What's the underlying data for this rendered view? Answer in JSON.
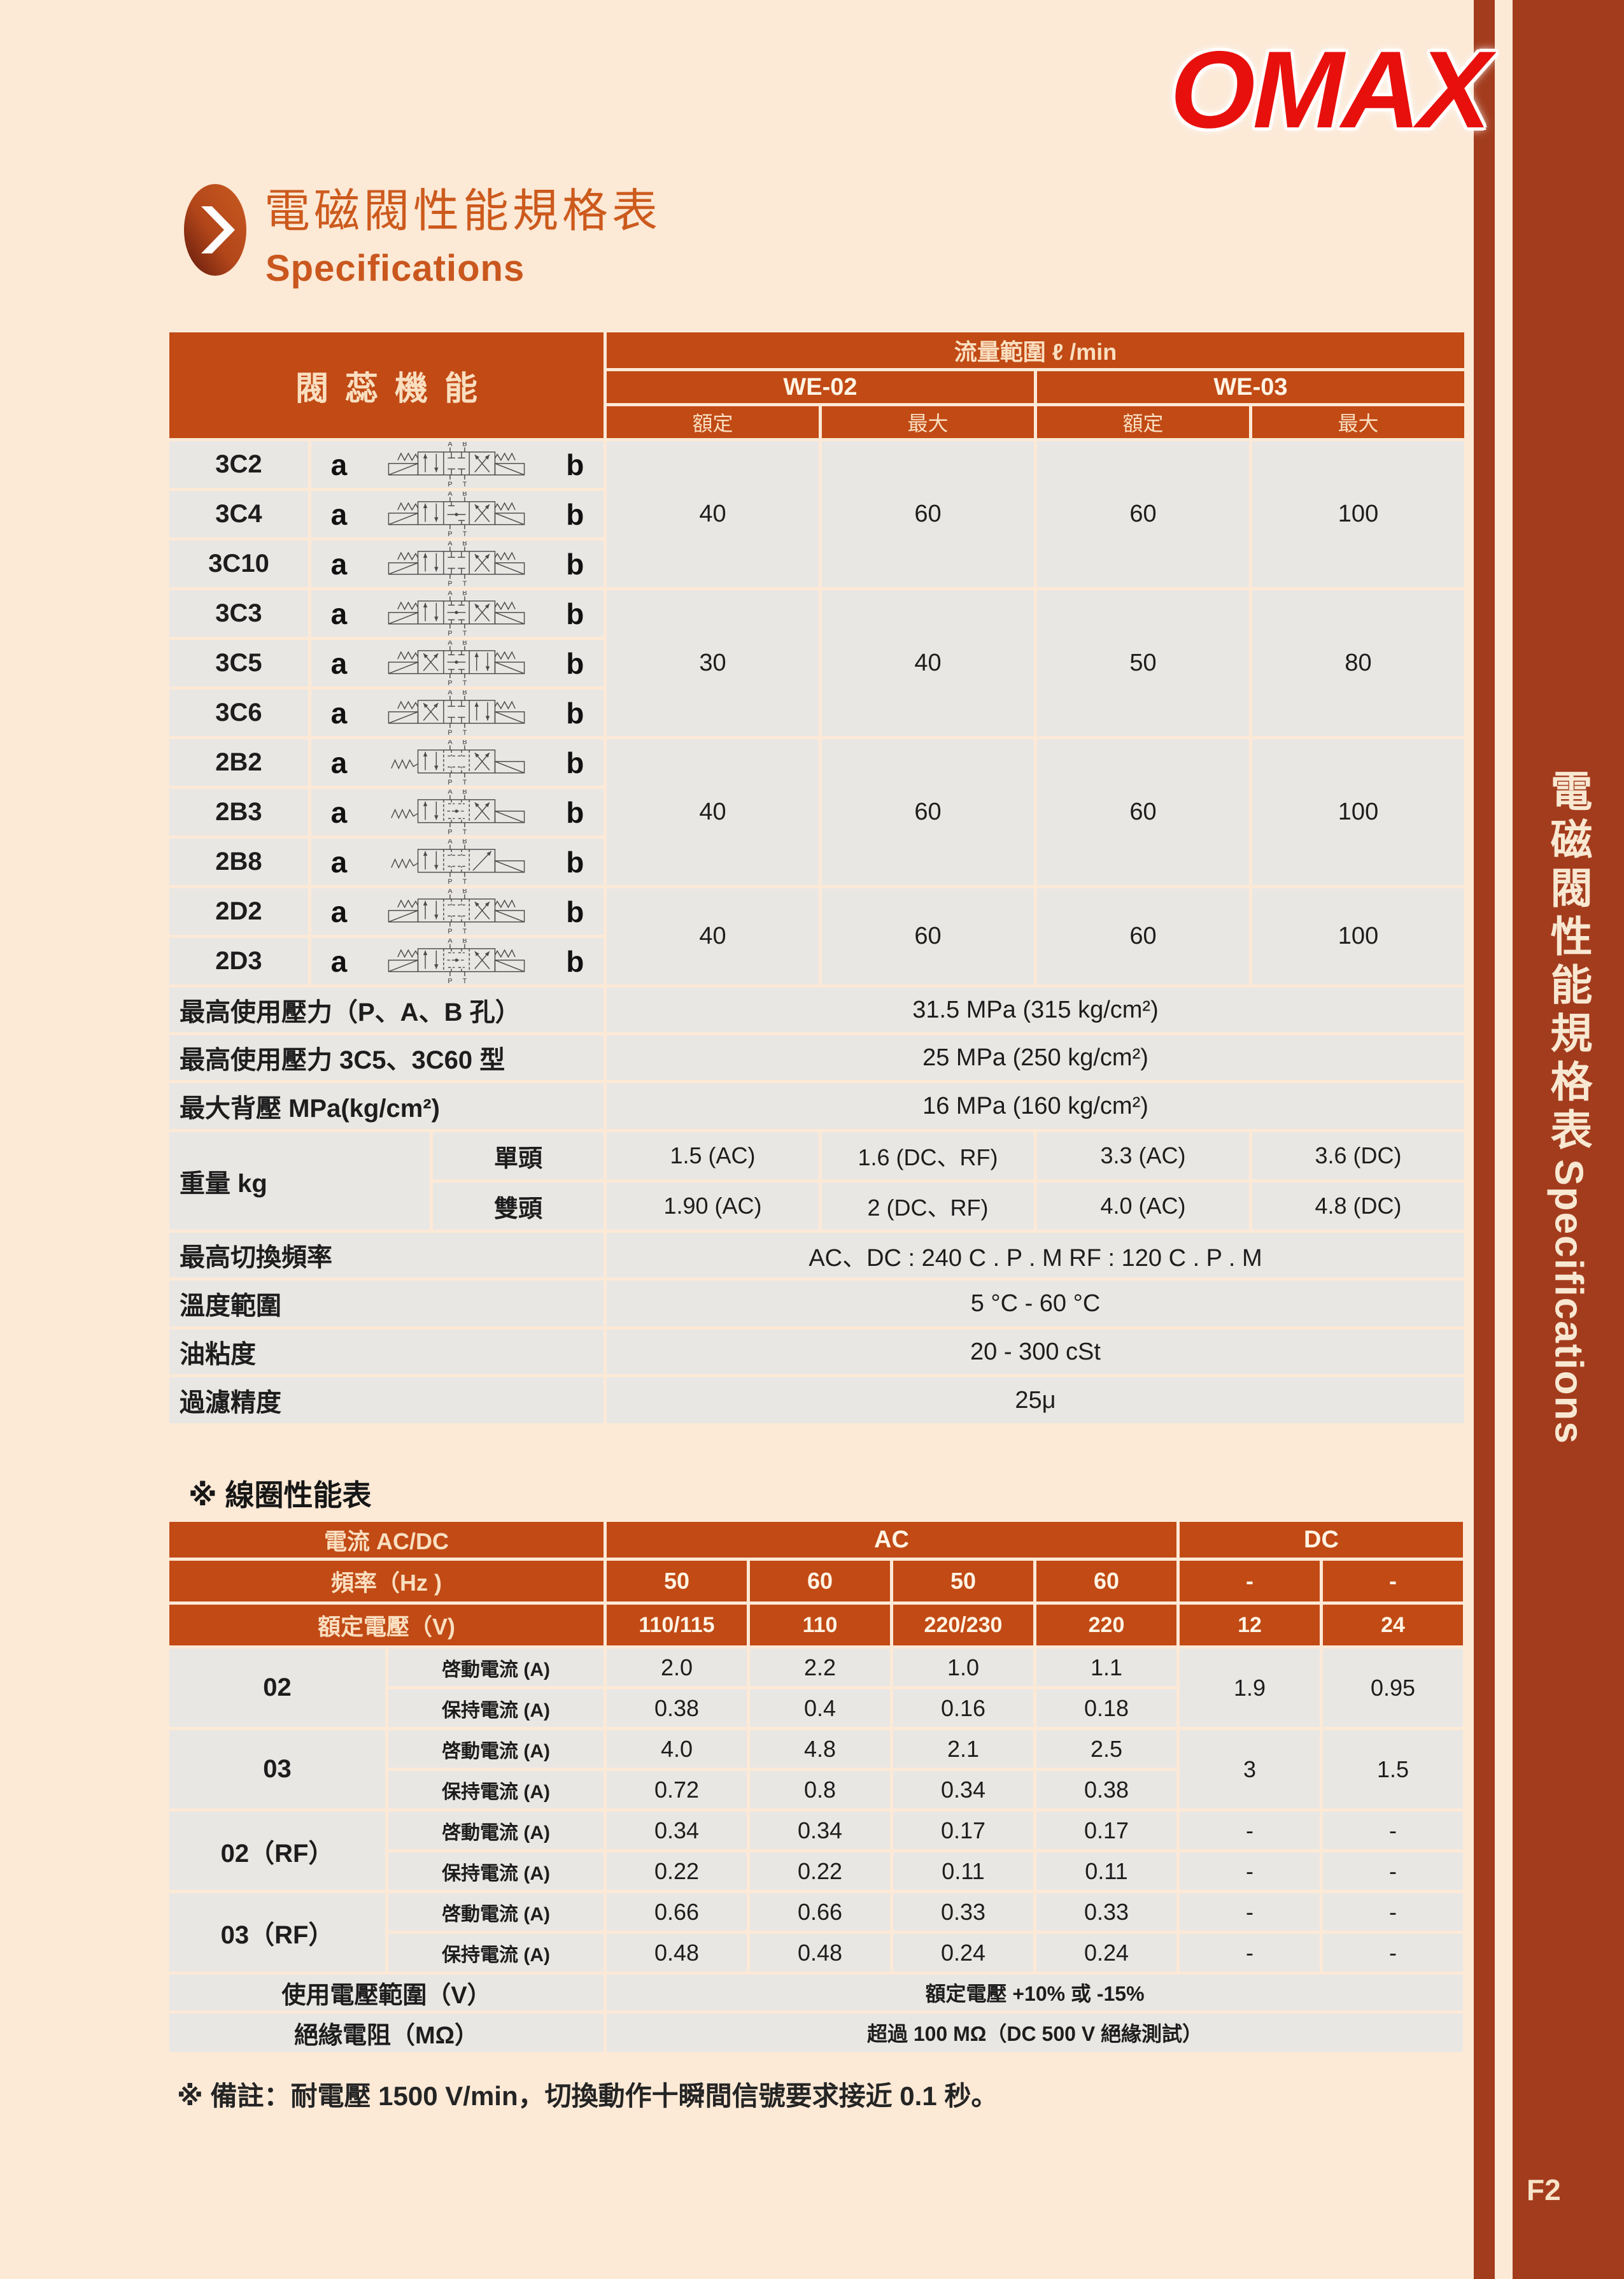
{
  "page": {
    "background": "#fce9d6",
    "accent_orange": "#c14a15",
    "sidebar_rust": "#a33c1d",
    "logo_red": "#e8100c",
    "page_number": "F2"
  },
  "logo": {
    "text": "OMAX"
  },
  "header": {
    "title": "電磁閥性能規格表",
    "subtitle": "Specifications"
  },
  "sidebar": {
    "vertical_title": "電磁閥性能規格表",
    "vertical_subtitle": "Specifications"
  },
  "main_table": {
    "corner_header": "閥蕊機能",
    "flow_header": "流量範圍 ℓ /min",
    "col_groups": [
      "WE-02",
      "WE-03"
    ],
    "sub_cols": [
      "額定",
      "最大",
      "額定",
      "最大"
    ],
    "port_labels": {
      "a": "a",
      "b": "b"
    },
    "valve_groups": [
      {
        "models": [
          {
            "code": "3C2",
            "symbol": "3pos-closed-center"
          },
          {
            "code": "3C4",
            "symbol": "3pos-line-center"
          },
          {
            "code": "3C10",
            "symbol": "3pos-closed-center-b"
          }
        ],
        "flows": [
          "40",
          "60",
          "60",
          "100"
        ]
      },
      {
        "models": [
          {
            "code": "3C3",
            "symbol": "3pos-h-center"
          },
          {
            "code": "3C5",
            "symbol": "3pos-cross-left"
          },
          {
            "code": "3C6",
            "symbol": "3pos-cross-left-closed"
          }
        ],
        "flows": [
          "30",
          "40",
          "50",
          "80"
        ]
      },
      {
        "models": [
          {
            "code": "2B2",
            "symbol": "2pos-spring-closed"
          },
          {
            "code": "2B3",
            "symbol": "2pos-spring-h"
          },
          {
            "code": "2B8",
            "symbol": "2pos-spring-diag"
          }
        ],
        "flows": [
          "40",
          "60",
          "60",
          "100"
        ]
      },
      {
        "models": [
          {
            "code": "2D2",
            "symbol": "2pos-double-closed"
          },
          {
            "code": "2D3",
            "symbol": "2pos-double-h"
          }
        ],
        "flows": [
          "40",
          "60",
          "60",
          "100"
        ]
      }
    ],
    "spec_rows": [
      {
        "label": "最高使用壓力（P、A、B 孔）",
        "value": "31.5 MPa (315 kg/cm²)"
      },
      {
        "label": "最高使用壓力 3C5、3C60 型",
        "value": "25 MPa (250 kg/cm²)"
      },
      {
        "label": "最大背壓 MPa(kg/cm²)",
        "value": "16 MPa (160 kg/cm²)"
      }
    ],
    "weight": {
      "label": "重量 kg",
      "rows": [
        {
          "sub": "單頭",
          "values": [
            "1.5 (AC)",
            "1.6 (DC、RF)",
            "3.3 (AC)",
            "3.6 (DC)"
          ]
        },
        {
          "sub": "雙頭",
          "values": [
            "1.90 (AC)",
            "2 (DC、RF)",
            "4.0 (AC)",
            "4.8 (DC)"
          ]
        }
      ]
    },
    "bottom_rows": [
      {
        "label": "最高切換頻率",
        "value": "AC、DC : 240 C . P . M      RF : 120 C . P . M"
      },
      {
        "label": "溫度範圍",
        "value": "5 °C - 60 °C"
      },
      {
        "label": "油粘度",
        "value": "20 - 300 cSt"
      },
      {
        "label": "過濾精度",
        "value": "25μ"
      }
    ]
  },
  "coil_table": {
    "title": "※ 線圈性能表",
    "header": {
      "current_label": "電流 AC/DC",
      "ac": "AC",
      "dc": "DC",
      "freq_label": "頻率（Hz )",
      "freqs": [
        "50",
        "60",
        "50",
        "60",
        "-",
        "-"
      ],
      "volt_label": "額定電壓（V)",
      "volts": [
        "110/115",
        "110",
        "220/230",
        "220",
        "12",
        "24"
      ]
    },
    "row_subs": [
      "啓動電流 (A)",
      "保持電流 (A)"
    ],
    "groups": [
      {
        "label": "02",
        "start": [
          "2.0",
          "2.2",
          "1.0",
          "1.1"
        ],
        "hold": [
          "0.38",
          "0.4",
          "0.16",
          "0.18"
        ],
        "dc_merged": [
          "1.9",
          "0.95"
        ]
      },
      {
        "label": "03",
        "start": [
          "4.0",
          "4.8",
          "2.1",
          "2.5"
        ],
        "hold": [
          "0.72",
          "0.8",
          "0.34",
          "0.38"
        ],
        "dc_merged": [
          "3",
          "1.5"
        ]
      },
      {
        "label": "02（RF）",
        "start": [
          "0.34",
          "0.34",
          "0.17",
          "0.17"
        ],
        "hold": [
          "0.22",
          "0.22",
          "0.11",
          "0.11"
        ],
        "dc_start": [
          "-",
          "-"
        ],
        "dc_hold": [
          "-",
          "-"
        ]
      },
      {
        "label": "03（RF）",
        "start": [
          "0.66",
          "0.66",
          "0.33",
          "0.33"
        ],
        "hold": [
          "0.48",
          "0.48",
          "0.24",
          "0.24"
        ],
        "dc_start": [
          "-",
          "-"
        ],
        "dc_hold": [
          "-",
          "-"
        ]
      }
    ],
    "footer_rows": [
      {
        "label": "使用電壓範圍（V）",
        "value": "額定電壓 +10% 或 -15%"
      },
      {
        "label": "絕緣電阻（MΩ）",
        "value": "超過 100 MΩ（DC 500 V 絕緣測試）"
      }
    ]
  },
  "footnote": "※ 備註：耐電壓 1500 V/min，切換動作十瞬間信號要求接近 0.1 秒。"
}
